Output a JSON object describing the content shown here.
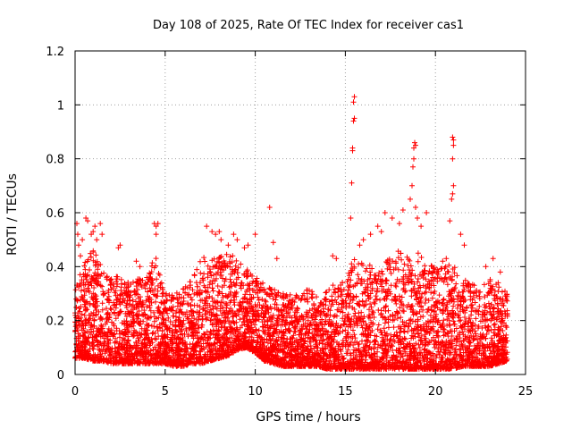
{
  "chart_data": {
    "type": "scatter",
    "title": "Day 108 of 2025, Rate Of TEC Index for receiver cas1",
    "xlabel": "GPS time / hours",
    "ylabel": "ROTI / TECUs",
    "xlim": [
      0,
      25
    ],
    "ylim": [
      0,
      1.2
    ],
    "x_ticks": [
      0,
      5,
      10,
      15,
      20,
      25
    ],
    "x_tick_labels": [
      "0",
      "5",
      "10",
      "15",
      "20",
      "25"
    ],
    "y_ticks": [
      0,
      0.2,
      0.4,
      0.6,
      0.8,
      1,
      1.2
    ],
    "y_tick_labels": [
      "0",
      "0.2",
      "0.4",
      "0.6",
      "0.8",
      "1",
      "1.2"
    ],
    "grid": true,
    "marker": "plus",
    "colors": {
      "points": "#ff0000",
      "grid": "#a0a0a0",
      "frame": "#000000"
    },
    "envelope": {
      "x": [
        0,
        0.5,
        1,
        1.5,
        2,
        2.5,
        3,
        3.5,
        4,
        4.5,
        5,
        5.5,
        6,
        6.5,
        7,
        7.5,
        8,
        8.5,
        9,
        9.5,
        10,
        10.5,
        11,
        11.5,
        12,
        12.5,
        13,
        13.5,
        14,
        14.5,
        15,
        15.5,
        16,
        16.5,
        17,
        17.5,
        18,
        18.5,
        19,
        19.5,
        20,
        20.5,
        21,
        21.5,
        22,
        22.5,
        23,
        23.5,
        24
      ],
      "min": [
        0.06,
        0.06,
        0.05,
        0.05,
        0.04,
        0.04,
        0.04,
        0.04,
        0.04,
        0.04,
        0.04,
        0.03,
        0.03,
        0.04,
        0.04,
        0.05,
        0.06,
        0.07,
        0.09,
        0.1,
        0.08,
        0.05,
        0.04,
        0.03,
        0.03,
        0.03,
        0.03,
        0.03,
        0.02,
        0.02,
        0.02,
        0.02,
        0.02,
        0.02,
        0.02,
        0.02,
        0.02,
        0.02,
        0.02,
        0.02,
        0.02,
        0.02,
        0.02,
        0.03,
        0.03,
        0.03,
        0.03,
        0.04,
        0.05
      ],
      "max": [
        0.32,
        0.42,
        0.48,
        0.4,
        0.36,
        0.38,
        0.34,
        0.36,
        0.38,
        0.44,
        0.3,
        0.3,
        0.32,
        0.36,
        0.44,
        0.42,
        0.44,
        0.46,
        0.42,
        0.4,
        0.36,
        0.34,
        0.32,
        0.3,
        0.3,
        0.3,
        0.32,
        0.3,
        0.32,
        0.34,
        0.4,
        0.44,
        0.42,
        0.4,
        0.42,
        0.44,
        0.46,
        0.44,
        0.46,
        0.42,
        0.4,
        0.4,
        0.42,
        0.36,
        0.34,
        0.32,
        0.36,
        0.34,
        0.3
      ]
    },
    "points": [
      [
        0.1,
        0.56
      ],
      [
        0.15,
        0.52
      ],
      [
        0.2,
        0.48
      ],
      [
        0.3,
        0.44
      ],
      [
        0.4,
        0.5
      ],
      [
        0.6,
        0.58
      ],
      [
        0.7,
        0.57
      ],
      [
        0.9,
        0.52
      ],
      [
        1.0,
        0.53
      ],
      [
        1.1,
        0.55
      ],
      [
        1.2,
        0.5
      ],
      [
        1.4,
        0.56
      ],
      [
        1.5,
        0.52
      ],
      [
        2.4,
        0.47
      ],
      [
        2.5,
        0.48
      ],
      [
        3.4,
        0.42
      ],
      [
        3.6,
        0.4
      ],
      [
        4.4,
        0.56
      ],
      [
        4.5,
        0.55
      ],
      [
        4.6,
        0.56
      ],
      [
        4.5,
        0.52
      ],
      [
        7.3,
        0.55
      ],
      [
        7.6,
        0.53
      ],
      [
        7.8,
        0.52
      ],
      [
        8.0,
        0.53
      ],
      [
        8.1,
        0.5
      ],
      [
        8.5,
        0.48
      ],
      [
        8.8,
        0.52
      ],
      [
        9.0,
        0.5
      ],
      [
        9.4,
        0.47
      ],
      [
        9.6,
        0.48
      ],
      [
        10.0,
        0.52
      ],
      [
        10.8,
        0.62
      ],
      [
        11.0,
        0.49
      ],
      [
        11.2,
        0.43
      ],
      [
        14.3,
        0.44
      ],
      [
        14.5,
        0.43
      ],
      [
        15.3,
        0.58
      ],
      [
        15.35,
        0.71
      ],
      [
        15.4,
        0.83
      ],
      [
        15.4,
        0.84
      ],
      [
        15.45,
        0.94
      ],
      [
        15.5,
        0.95
      ],
      [
        15.45,
        1.01
      ],
      [
        15.5,
        1.03
      ],
      [
        15.8,
        0.48
      ],
      [
        16.0,
        0.5
      ],
      [
        16.4,
        0.52
      ],
      [
        16.8,
        0.55
      ],
      [
        17.0,
        0.53
      ],
      [
        17.2,
        0.6
      ],
      [
        17.6,
        0.58
      ],
      [
        18.0,
        0.56
      ],
      [
        18.2,
        0.61
      ],
      [
        18.6,
        0.65
      ],
      [
        18.7,
        0.7
      ],
      [
        18.75,
        0.77
      ],
      [
        18.8,
        0.8
      ],
      [
        18.8,
        0.84
      ],
      [
        18.85,
        0.86
      ],
      [
        18.9,
        0.85
      ],
      [
        18.9,
        0.62
      ],
      [
        19.0,
        0.58
      ],
      [
        19.2,
        0.55
      ],
      [
        19.5,
        0.6
      ],
      [
        20.4,
        0.42
      ],
      [
        20.6,
        0.43
      ],
      [
        20.8,
        0.57
      ],
      [
        20.9,
        0.65
      ],
      [
        20.95,
        0.67
      ],
      [
        21.0,
        0.7
      ],
      [
        20.95,
        0.8
      ],
      [
        21.0,
        0.85
      ],
      [
        21.0,
        0.87
      ],
      [
        20.95,
        0.88
      ],
      [
        21.4,
        0.52
      ],
      [
        21.6,
        0.48
      ],
      [
        22.8,
        0.4
      ],
      [
        23.2,
        0.43
      ],
      [
        23.6,
        0.38
      ]
    ]
  }
}
